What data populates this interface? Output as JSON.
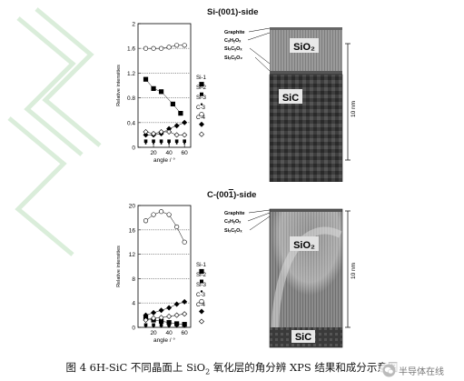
{
  "top_panel": {
    "title": "Si-(001)-side"
  },
  "bottom_panel": {
    "title_prefix": "C-(00",
    "title_digit": "1",
    "title_suffix": ")-side"
  },
  "tem_top": {
    "labels": [
      "Graphite",
      "CₓHᵧOₓ",
      "SiₓCᵧOₓ",
      "SiₓCᵧO₂"
    ],
    "oxide": "SiO₂",
    "substrate": "SiC",
    "scale": "10 nm"
  },
  "tem_bottom": {
    "labels": [
      "Graphite",
      "CₓHᵧOₓ",
      "SiₓCᵧOₓ"
    ],
    "oxide": "SiO₂",
    "substrate": "SiC",
    "scale": "10 nm"
  },
  "chart_data": [
    {
      "type": "scatter",
      "panel": "Si-(001)-side",
      "xlabel": "angle / °",
      "ylabel": "Relative intensities",
      "xticks": [
        20,
        40,
        60
      ],
      "yticks": [
        0,
        0.4,
        0.8,
        1.2,
        1.6,
        2
      ],
      "xlim": [
        0,
        68
      ],
      "ylim": [
        0,
        2
      ],
      "series": [
        {
          "name": "Si-1",
          "marker": "square-filled",
          "x": [
            10,
            20,
            30,
            45,
            55
          ],
          "y": [
            1.1,
            0.95,
            0.9,
            0.7,
            0.55
          ]
        },
        {
          "name": "Si-2",
          "marker": "square-filled-small",
          "x": [
            10,
            20,
            30,
            40,
            50,
            60
          ],
          "y": [
            0.1,
            0.1,
            0.1,
            0.1,
            0.1,
            0.1
          ]
        },
        {
          "name": "Si-3",
          "marker": "dot-small",
          "x": [
            10,
            20,
            30,
            40,
            50,
            60
          ],
          "y": [
            0.06,
            0.06,
            0.06,
            0.06,
            0.06,
            0.06
          ]
        },
        {
          "name": "C-3",
          "marker": "circle-open",
          "x": [
            10,
            20,
            30,
            40,
            50,
            60
          ],
          "y": [
            1.6,
            1.6,
            1.6,
            1.62,
            1.65,
            1.65
          ]
        },
        {
          "name": "C-4",
          "marker": "diamond-filled",
          "x": [
            10,
            20,
            30,
            40,
            50,
            60
          ],
          "y": [
            0.2,
            0.2,
            0.22,
            0.3,
            0.35,
            0.4
          ]
        },
        {
          "name": "",
          "marker": "diamond-open",
          "x": [
            10,
            20,
            30,
            40,
            50,
            60
          ],
          "y": [
            0.25,
            0.22,
            0.25,
            0.25,
            0.2,
            0.2
          ]
        }
      ]
    },
    {
      "type": "scatter",
      "panel": "C-(00ī)-side",
      "xlabel": "angle / °",
      "ylabel": "Relative intensities",
      "xticks": [
        20,
        40,
        60
      ],
      "yticks": [
        0,
        4,
        8,
        12,
        16,
        20
      ],
      "xlim": [
        0,
        68
      ],
      "ylim": [
        0,
        20
      ],
      "series": [
        {
          "name": "Si-1",
          "marker": "square-filled",
          "x": [
            10,
            20,
            30,
            40,
            50,
            60
          ],
          "y": [
            1.5,
            1.2,
            1.0,
            0.8,
            0.6,
            0.5
          ]
        },
        {
          "name": "Si-2",
          "marker": "square-filled-small",
          "x": [
            10,
            20,
            30,
            40,
            50,
            60
          ],
          "y": [
            0.4,
            0.4,
            0.4,
            0.4,
            0.4,
            0.4
          ]
        },
        {
          "name": "Si-3",
          "marker": "dot-small",
          "x": [
            10,
            20,
            30,
            40,
            50,
            60
          ],
          "y": [
            0.1,
            0.1,
            0.1,
            0.1,
            0.1,
            0.1
          ]
        },
        {
          "name": "C-3",
          "marker": "circle-open",
          "x": [
            10,
            20,
            30,
            40,
            50,
            60
          ],
          "y": [
            17.5,
            18.5,
            19.0,
            18.5,
            16.5,
            14.0
          ]
        },
        {
          "name": "C-4",
          "marker": "diamond-filled",
          "x": [
            10,
            20,
            30,
            40,
            50,
            60
          ],
          "y": [
            2.0,
            2.4,
            2.8,
            3.2,
            3.8,
            4.2
          ]
        },
        {
          "name": "",
          "marker": "diamond-open",
          "x": [
            10,
            20,
            30,
            40,
            50,
            60
          ],
          "y": [
            1.2,
            1.5,
            1.6,
            1.8,
            2.0,
            2.2
          ]
        }
      ]
    }
  ],
  "caption": {
    "pre": "图 4 6H-SiC 不同晶面上 SiO",
    "sub": "2",
    "post": " 氧化层的角分辨 XPS 结果和成分示意图"
  },
  "watermark": {
    "text": "半导体在线",
    "icon": "wechat-icon"
  },
  "colors": {
    "grid_dotted": "#555555",
    "watermark_green": "#d6ecd6",
    "tem_dark": "#3a3a3a"
  }
}
